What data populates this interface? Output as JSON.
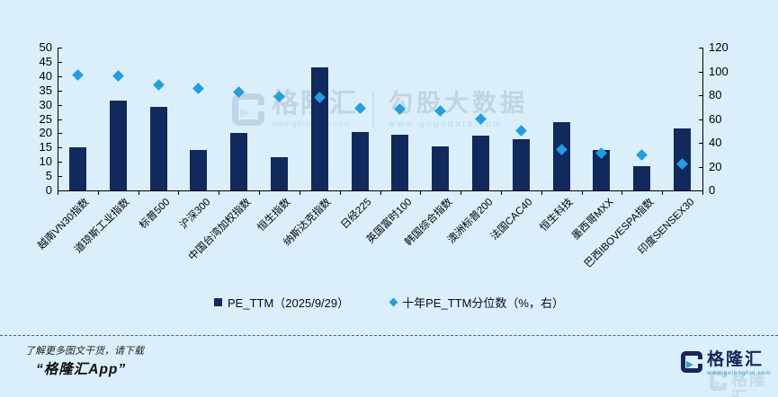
{
  "colors": {
    "background": "#dbeffa",
    "bar": "#12295e",
    "diamond": "#1f9fe4",
    "axis": "#000000",
    "watermark": "#a9bacf",
    "brand_navy": "#14265a",
    "brand_blue": "#2d9be0"
  },
  "chart_data": {
    "type": "bar",
    "title": "",
    "categories": [
      "越南VN30指数",
      "道琼斯工业指数",
      "标普500",
      "沪深300",
      "中国台湾加权指数",
      "恒生指数",
      "纳斯达克指数",
      "日经225",
      "英国富时100",
      "韩国综合指数",
      "澳洲标普200",
      "法国CAC40",
      "恒生科技",
      "墨西哥MXX",
      "巴西IBOVESPA指数",
      "印度SENSEX30"
    ],
    "series": [
      {
        "name": "PE_TTM（2025/9/29）",
        "type": "bar",
        "axis": "left",
        "color": "#12295e",
        "values": [
          15.0,
          31.5,
          29.3,
          14.1,
          20.0,
          11.6,
          43.0,
          20.3,
          19.6,
          15.3,
          19.2,
          17.9,
          24.0,
          14.0,
          8.5,
          21.8
        ]
      },
      {
        "name": "十年PE_TTM分位数（%，右）",
        "type": "scatter",
        "marker": "diamond",
        "axis": "right",
        "color": "#1f9fe4",
        "values": [
          97,
          96,
          89,
          86,
          83,
          79,
          78,
          69,
          68,
          67,
          60,
          50,
          34,
          31,
          30,
          22
        ]
      }
    ],
    "left_axis": {
      "min": 0,
      "max": 50,
      "step": 5
    },
    "right_axis": {
      "min": 0,
      "max": 120,
      "step": 20
    },
    "grid": false,
    "legend_position": "bottom",
    "xlabel_rotation": -45
  },
  "legend": {
    "bar_label": "PE_TTM（2025/9/29）",
    "diamond_label": "十年PE_TTM分位数（%，右）"
  },
  "watermark_center": {
    "brand": "格隆汇",
    "brand_url": "www.gelonghui.com",
    "product": "勾股大数据",
    "product_url": "www.gogudata.com"
  },
  "footer": {
    "note_line1": "了解更多图文干货，请下载",
    "note_line2": "“格隆汇App”",
    "brand": "格隆汇",
    "brand_url": "www.gelonghui.com",
    "ghost_brand": "格隆汇"
  }
}
